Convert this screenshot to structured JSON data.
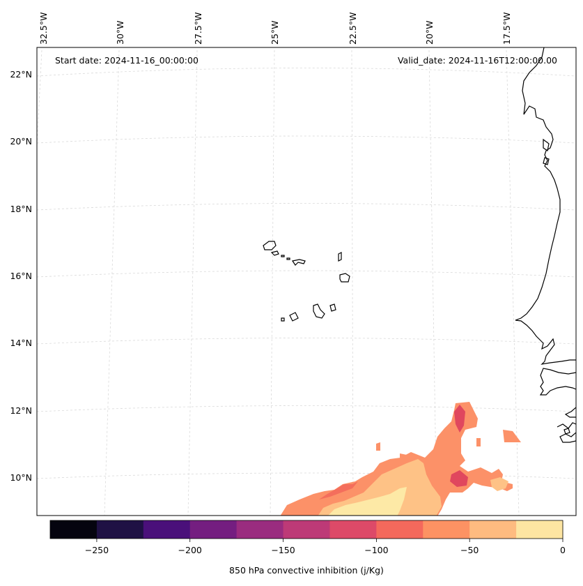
{
  "map": {
    "start_date": "Start date: 2024-11-16_00:00:00",
    "valid_date": "Valid_date: 2024-11-16T12:00:00.00",
    "lon_labels": [
      "32.5°W",
      "30°W",
      "27.5°W",
      "25°W",
      "22.5°W",
      "20°W",
      "17.5°W"
    ],
    "lat_labels": [
      "22°N",
      "20°N",
      "18°N",
      "16°N",
      "14°N",
      "12°N",
      "10°N"
    ],
    "field": "850 hPa convective inhibition",
    "colors": {
      "very_low": "#fde9a6",
      "low": "#fec286",
      "mid": "#fc9168",
      "mid_high": "#f46e5c",
      "high": "#e0475e"
    }
  },
  "colorbar": {
    "label": "850 hPa convective inhibition (j/Kg)",
    "ticks": [
      "−250",
      "−200",
      "−150",
      "−100",
      "−50",
      "0"
    ],
    "bins": [
      -275,
      -250,
      -225,
      -200,
      -175,
      -150,
      -125,
      -100,
      -75,
      -50,
      -25,
      0
    ],
    "colors": [
      "#05040f",
      "#1f1144",
      "#4a107a",
      "#741e80",
      "#9a2c7f",
      "#bd3a77",
      "#dd4a68",
      "#f4695c",
      "#fd9263",
      "#febb80",
      "#fde5a2"
    ]
  }
}
